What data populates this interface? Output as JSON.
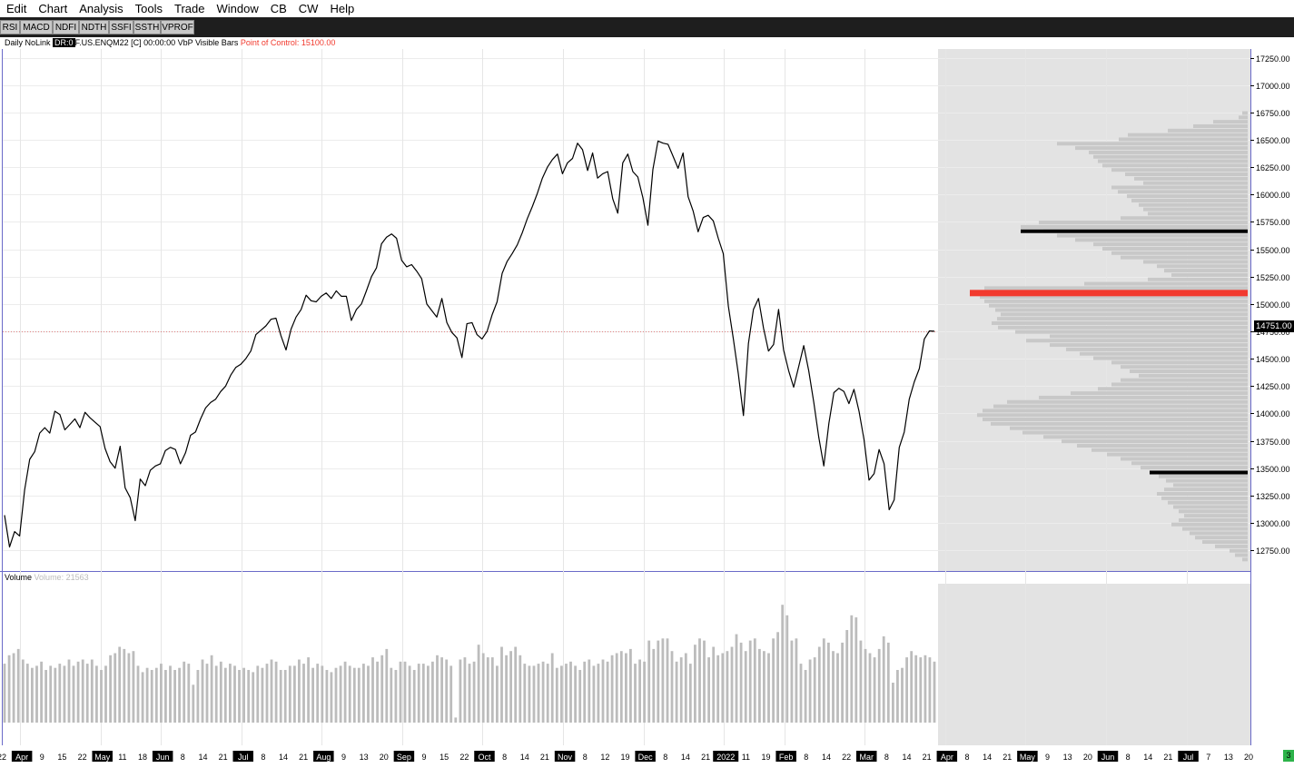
{
  "menu": [
    "Edit",
    "Chart",
    "Analysis",
    "Tools",
    "Trade",
    "Window",
    "CB",
    "CW",
    "Help"
  ],
  "toolbar_buttons": [
    "RSI",
    "MACD",
    "NDFI",
    "NDTH",
    "SSFI",
    "SSTH",
    "VPROF"
  ],
  "chart_header": {
    "prefix": "Daily NoLink",
    "badge": "DR:0",
    "symbol_info": "F.US.ENQM22 [C] 00:00:00 VbP Visible Bars",
    "poc_text": "Point of Control: 15100.00"
  },
  "volume_header": {
    "label": "Volume",
    "value": "Volume: 21563"
  },
  "current_price_label": "14751.00",
  "status_box": "3",
  "colors": {
    "price_line": "#000000",
    "poc_bar": "#f23a2e",
    "profile_bar": "#c8c8c8",
    "volume_bar": "#bcbcbc",
    "future_bg": "#e3e3e3",
    "price_tag_bg": "#000000"
  },
  "price_axis_ticks": [
    "17250.00",
    "17000.00",
    "16750.00",
    "16500.00",
    "16250.00",
    "16000.00",
    "15750.00",
    "15500.00",
    "15250.00",
    "15000.00",
    "14750.00",
    "14500.00",
    "14250.00",
    "14000.00",
    "13750.00",
    "13500.00",
    "13250.00",
    "13000.00",
    "12750.00"
  ],
  "date_axis": [
    {
      "t": "22",
      "h": false
    },
    {
      "t": "Apr",
      "h": true
    },
    {
      "t": "9",
      "h": false
    },
    {
      "t": "15",
      "h": false
    },
    {
      "t": "22",
      "h": false
    },
    {
      "t": "May",
      "h": true
    },
    {
      "t": "11",
      "h": false
    },
    {
      "t": "18",
      "h": false
    },
    {
      "t": "Jun",
      "h": true
    },
    {
      "t": "8",
      "h": false
    },
    {
      "t": "14",
      "h": false
    },
    {
      "t": "21",
      "h": false
    },
    {
      "t": "Jul",
      "h": true
    },
    {
      "t": "8",
      "h": false
    },
    {
      "t": "14",
      "h": false
    },
    {
      "t": "21",
      "h": false
    },
    {
      "t": "Aug",
      "h": true
    },
    {
      "t": "9",
      "h": false
    },
    {
      "t": "13",
      "h": false
    },
    {
      "t": "20",
      "h": false
    },
    {
      "t": "Sep",
      "h": true
    },
    {
      "t": "9",
      "h": false
    },
    {
      "t": "15",
      "h": false
    },
    {
      "t": "22",
      "h": false
    },
    {
      "t": "Oct",
      "h": true
    },
    {
      "t": "8",
      "h": false
    },
    {
      "t": "14",
      "h": false
    },
    {
      "t": "21",
      "h": false
    },
    {
      "t": "Nov",
      "h": true
    },
    {
      "t": "8",
      "h": false
    },
    {
      "t": "12",
      "h": false
    },
    {
      "t": "19",
      "h": false
    },
    {
      "t": "Dec",
      "h": true
    },
    {
      "t": "8",
      "h": false
    },
    {
      "t": "14",
      "h": false
    },
    {
      "t": "21",
      "h": false
    },
    {
      "t": "2022",
      "h": true
    },
    {
      "t": "11",
      "h": false
    },
    {
      "t": "19",
      "h": false
    },
    {
      "t": "Feb",
      "h": true
    },
    {
      "t": "8",
      "h": false
    },
    {
      "t": "14",
      "h": false
    },
    {
      "t": "22",
      "h": false
    },
    {
      "t": "Mar",
      "h": true
    },
    {
      "t": "8",
      "h": false
    },
    {
      "t": "14",
      "h": false
    },
    {
      "t": "21",
      "h": false
    },
    {
      "t": "Apr",
      "h": true
    },
    {
      "t": "8",
      "h": false
    },
    {
      "t": "14",
      "h": false
    },
    {
      "t": "21",
      "h": false
    },
    {
      "t": "May",
      "h": true
    },
    {
      "t": "9",
      "h": false
    },
    {
      "t": "13",
      "h": false
    },
    {
      "t": "20",
      "h": false
    },
    {
      "t": "Jun",
      "h": true
    },
    {
      "t": "8",
      "h": false
    },
    {
      "t": "14",
      "h": false
    },
    {
      "t": "21",
      "h": false
    },
    {
      "t": "Jul",
      "h": true
    },
    {
      "t": "7",
      "h": false
    },
    {
      "t": "13",
      "h": false
    },
    {
      "t": "20",
      "h": false
    }
  ],
  "chart_data": {
    "type": "line",
    "price_range": [
      12560,
      17330
    ],
    "current_price": 14751,
    "price_series": [
      13070,
      12780,
      12920,
      12880,
      13300,
      13580,
      13650,
      13820,
      13870,
      13820,
      14020,
      13990,
      13850,
      13900,
      13950,
      13870,
      14010,
      13960,
      13920,
      13880,
      13680,
      13560,
      13500,
      13700,
      13320,
      13230,
      13020,
      13400,
      13340,
      13480,
      13520,
      13540,
      13660,
      13690,
      13670,
      13540,
      13640,
      13800,
      13830,
      13950,
      14050,
      14100,
      14130,
      14200,
      14250,
      14350,
      14420,
      14450,
      14500,
      14570,
      14720,
      14760,
      14800,
      14860,
      14870,
      14710,
      14580,
      14770,
      14880,
      14950,
      15080,
      15030,
      15020,
      15070,
      15100,
      15050,
      15120,
      15070,
      15070,
      14850,
      14950,
      15000,
      15120,
      15250,
      15330,
      15550,
      15610,
      15640,
      15600,
      15400,
      15340,
      15360,
      15300,
      15230,
      15000,
      14940,
      14880,
      15050,
      14830,
      14740,
      14690,
      14510,
      14820,
      14830,
      14720,
      14680,
      14750,
      14900,
      15020,
      15280,
      15390,
      15460,
      15540,
      15650,
      15780,
      15890,
      16010,
      16150,
      16250,
      16320,
      16370,
      16190,
      16290,
      16330,
      16470,
      16410,
      16220,
      16380,
      16150,
      16190,
      16210,
      15960,
      15830,
      16290,
      16370,
      16210,
      16160,
      15970,
      15720,
      16230,
      16490,
      16470,
      16460,
      16350,
      16240,
      16380,
      15980,
      15850,
      15660,
      15790,
      15810,
      15760,
      15600,
      15460,
      14980,
      14680,
      14360,
      13980,
      14640,
      14950,
      15050,
      14780,
      14570,
      14630,
      14950,
      14580,
      14390,
      14240,
      14430,
      14620,
      14390,
      14100,
      13780,
      13520,
      13910,
      14190,
      14230,
      14200,
      14090,
      14220,
      14020,
      13760,
      13390,
      13450,
      13670,
      13540,
      13120,
      13210,
      13690,
      13830,
      14130,
      14290,
      14410,
      14680,
      14754,
      14751
    ],
    "volume_range": [
      0,
      33000
    ],
    "volume_series": [
      14000,
      16000,
      16500,
      17500,
      15000,
      14000,
      13000,
      13500,
      14500,
      12500,
      13500,
      13000,
      14000,
      13500,
      15000,
      13500,
      14500,
      15000,
      14000,
      15000,
      13500,
      12500,
      13500,
      16000,
      16500,
      18000,
      17500,
      16500,
      17000,
      13500,
      12000,
      13000,
      12500,
      13000,
      14000,
      12500,
      13500,
      12500,
      13000,
      14500,
      14000,
      9000,
      12500,
      15000,
      14000,
      16000,
      13500,
      14500,
      13000,
      14000,
      13500,
      12500,
      13000,
      12500,
      12000,
      13500,
      13000,
      14000,
      15000,
      14500,
      12500,
      12500,
      13500,
      13500,
      15000,
      14000,
      15500,
      13000,
      14000,
      13500,
      12500,
      12000,
      13000,
      13500,
      14500,
      13500,
      13000,
      13000,
      14000,
      13500,
      15500,
      14500,
      16000,
      17500,
      13000,
      12500,
      14500,
      14500,
      13500,
      12500,
      14000,
      14000,
      13500,
      14500,
      16000,
      15500,
      15000,
      13500,
      1200,
      15000,
      15500,
      14000,
      14500,
      18500,
      16500,
      15500,
      15500,
      13500,
      18000,
      16000,
      17000,
      18000,
      16000,
      14000,
      13500,
      13500,
      14000,
      14500,
      14000,
      16500,
      13000,
      13500,
      14000,
      14500,
      13500,
      12500,
      14500,
      15000,
      13500,
      14000,
      15000,
      14500,
      16000,
      16500,
      17000,
      16500,
      17500,
      14000,
      15000,
      14500,
      19500,
      17500,
      19500,
      20000,
      20000,
      17000,
      14500,
      15500,
      16500,
      14000,
      18500,
      20000,
      19500,
      15500,
      18000,
      16000,
      16500,
      17000,
      18000,
      21000,
      19000,
      17000,
      19500,
      20000,
      17500,
      17000,
      16500,
      20000,
      21500,
      28000,
      25500,
      19500,
      20000,
      14000,
      12500,
      15000,
      15500,
      18000,
      20000,
      19000,
      17000,
      16500,
      19000,
      22000,
      25500,
      25000,
      19500,
      17500,
      16500,
      15500,
      17500,
      20500,
      19000,
      9500,
      12500,
      13000,
      15500,
      17000,
      16000,
      15500,
      16000,
      15500,
      14500
    ],
    "volume_profile": [
      {
        "p": 16745,
        "w": 6
      },
      {
        "p": 16705,
        "w": 10
      },
      {
        "p": 16665,
        "w": 38
      },
      {
        "p": 16625,
        "w": 60
      },
      {
        "p": 16585,
        "w": 88
      },
      {
        "p": 16545,
        "w": 132
      },
      {
        "p": 16505,
        "w": 142
      },
      {
        "p": 16465,
        "w": 210
      },
      {
        "p": 16425,
        "w": 190
      },
      {
        "p": 16385,
        "w": 175
      },
      {
        "p": 16345,
        "w": 170
      },
      {
        "p": 16305,
        "w": 165
      },
      {
        "p": 16265,
        "w": 160
      },
      {
        "p": 16225,
        "w": 150
      },
      {
        "p": 16185,
        "w": 135
      },
      {
        "p": 16145,
        "w": 125
      },
      {
        "p": 16105,
        "w": 115
      },
      {
        "p": 16065,
        "w": 150
      },
      {
        "p": 16025,
        "w": 143
      },
      {
        "p": 15985,
        "w": 133
      },
      {
        "p": 15945,
        "w": 128
      },
      {
        "p": 15905,
        "w": 120
      },
      {
        "p": 15865,
        "w": 115
      },
      {
        "p": 15825,
        "w": 110
      },
      {
        "p": 15785,
        "w": 140
      },
      {
        "p": 15745,
        "w": 230
      },
      {
        "p": 15705,
        "w": 250
      },
      {
        "p": 15665,
        "w": 225
      },
      {
        "p": 15625,
        "w": 210
      },
      {
        "p": 15585,
        "w": 190
      },
      {
        "p": 15545,
        "w": 170
      },
      {
        "p": 15505,
        "w": 160
      },
      {
        "p": 15465,
        "w": 150
      },
      {
        "p": 15425,
        "w": 140
      },
      {
        "p": 15385,
        "w": 115
      },
      {
        "p": 15345,
        "w": 100
      },
      {
        "p": 15305,
        "w": 92
      },
      {
        "p": 15265,
        "w": 84
      },
      {
        "p": 15225,
        "w": 110
      },
      {
        "p": 15185,
        "w": 180
      },
      {
        "p": 15145,
        "w": 290
      },
      {
        "p": 15100,
        "w": 306
      },
      {
        "p": 15065,
        "w": 295
      },
      {
        "p": 15025,
        "w": 290
      },
      {
        "p": 14985,
        "w": 285
      },
      {
        "p": 14945,
        "w": 278
      },
      {
        "p": 14905,
        "w": 272
      },
      {
        "p": 14865,
        "w": 276
      },
      {
        "p": 14825,
        "w": 282
      },
      {
        "p": 14785,
        "w": 275
      },
      {
        "p": 14745,
        "w": 256
      },
      {
        "p": 14705,
        "w": 218
      },
      {
        "p": 14665,
        "w": 244
      },
      {
        "p": 14625,
        "w": 218
      },
      {
        "p": 14585,
        "w": 200
      },
      {
        "p": 14545,
        "w": 185
      },
      {
        "p": 14505,
        "w": 170
      },
      {
        "p": 14465,
        "w": 150
      },
      {
        "p": 14425,
        "w": 140
      },
      {
        "p": 14385,
        "w": 130
      },
      {
        "p": 14345,
        "w": 120
      },
      {
        "p": 14305,
        "w": 140
      },
      {
        "p": 14265,
        "w": 150
      },
      {
        "p": 14225,
        "w": 165
      },
      {
        "p": 14185,
        "w": 195
      },
      {
        "p": 14145,
        "w": 230
      },
      {
        "p": 14105,
        "w": 265
      },
      {
        "p": 14065,
        "w": 280
      },
      {
        "p": 14025,
        "w": 292
      },
      {
        "p": 13985,
        "w": 298
      },
      {
        "p": 13945,
        "w": 292
      },
      {
        "p": 13905,
        "w": 283
      },
      {
        "p": 13865,
        "w": 262
      },
      {
        "p": 13825,
        "w": 248
      },
      {
        "p": 13785,
        "w": 225
      },
      {
        "p": 13745,
        "w": 205
      },
      {
        "p": 13705,
        "w": 188
      },
      {
        "p": 13665,
        "w": 172
      },
      {
        "p": 13625,
        "w": 155
      },
      {
        "p": 13585,
        "w": 140
      },
      {
        "p": 13545,
        "w": 128
      },
      {
        "p": 13505,
        "w": 118
      },
      {
        "p": 13465,
        "w": 108
      },
      {
        "p": 13425,
        "w": 98
      },
      {
        "p": 13385,
        "w": 90
      },
      {
        "p": 13345,
        "w": 82
      },
      {
        "p": 13305,
        "w": 92
      },
      {
        "p": 13265,
        "w": 100
      },
      {
        "p": 13225,
        "w": 95
      },
      {
        "p": 13185,
        "w": 88
      },
      {
        "p": 13145,
        "w": 82
      },
      {
        "p": 13105,
        "w": 76
      },
      {
        "p": 13065,
        "w": 70
      },
      {
        "p": 13025,
        "w": 76
      },
      {
        "p": 12985,
        "w": 84
      },
      {
        "p": 12945,
        "w": 72
      },
      {
        "p": 12905,
        "w": 64
      },
      {
        "p": 12865,
        "w": 58
      },
      {
        "p": 12825,
        "w": 50
      },
      {
        "p": 12785,
        "w": 36
      },
      {
        "p": 12745,
        "w": 20
      },
      {
        "p": 12705,
        "w": 14
      },
      {
        "p": 12665,
        "w": 6
      }
    ],
    "level_lines": [
      {
        "price": 15665,
        "kind": "value-area-high",
        "color": "#000000",
        "width": 250
      },
      {
        "price": 15100,
        "kind": "point-of-control",
        "color": "#f23a2e",
        "width": 306
      },
      {
        "price": 13460,
        "kind": "value-area-low",
        "color": "#000000",
        "width": 108
      }
    ]
  }
}
